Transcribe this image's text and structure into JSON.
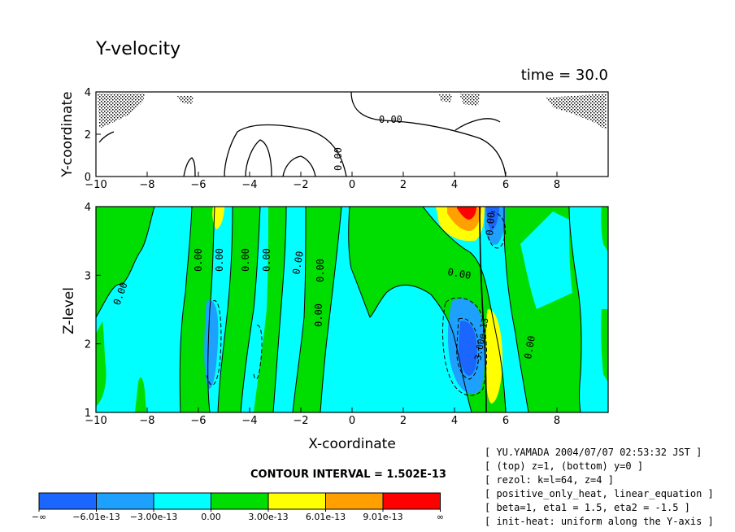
{
  "chart_data": {
    "type": "contour",
    "title": "Y-velocity",
    "time_label": "time = 30.0",
    "contour_interval_label": "CONTOUR INTERVAL = 1.502E-13",
    "top_panel": {
      "xlabel": "",
      "ylabel": "Y-coordinate",
      "xlim": [
        -10,
        10
      ],
      "ylim": [
        0,
        4
      ],
      "x_ticks": [
        "-10",
        "-8",
        "-6",
        "-4",
        "-2",
        "0",
        "2",
        "4",
        "6",
        "8"
      ],
      "y_ticks": [
        "0",
        "2",
        "4"
      ],
      "contour_labels": [
        "0.00",
        "0.00"
      ]
    },
    "bottom_panel": {
      "xlabel": "X-coordinate",
      "ylabel": "Z-level",
      "xlim": [
        -10,
        10
      ],
      "ylim": [
        1,
        4
      ],
      "x_ticks": [
        "-10",
        "-8",
        "-6",
        "-4",
        "-2",
        "0",
        "2",
        "4",
        "6",
        "8"
      ],
      "y_ticks": [
        "1",
        "2",
        "3",
        "4"
      ],
      "contour_labels": [
        "0.00",
        "0.00",
        "0.00",
        "0.00",
        "0.00",
        "0.00",
        "0.00",
        "0.00",
        "0.00",
        "0.00",
        "0.00",
        "-3.00e-13"
      ]
    },
    "colorbar": {
      "labels": [
        "-∞",
        "-6.01e-13",
        "-3.00e-13",
        "0.00",
        "3.00e-13",
        "6.01e-13",
        "9.01e-13",
        "∞"
      ],
      "colors": [
        "#1a66ff",
        "#1ea0ff",
        "#00ffff",
        "#00dd00",
        "#ffff00",
        "#ffa000",
        "#ff0000"
      ]
    }
  },
  "info_lines": [
    "[ YU.YAMADA 2004/07/07 02:53:32 JST ]",
    "[ (top) z=1, (bottom) y=0 ]",
    "[ rezol: k=l=64, z=4 ]",
    "[ positive_only_heat, linear_equation ]",
    "[ beta=1, eta1 = 1.5, eta2 = -1.5 ]",
    "[ init-heat: uniform along the Y-axis ]"
  ]
}
